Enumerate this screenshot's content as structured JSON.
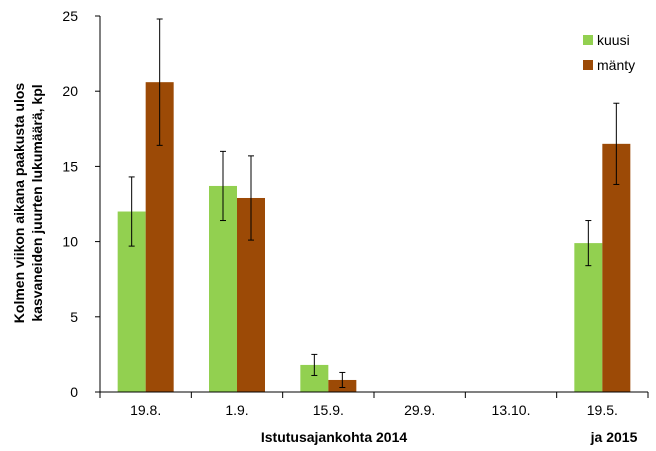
{
  "chart_data": {
    "type": "bar",
    "categories": [
      "19.8.",
      "1.9.",
      "15.9.",
      "29.9.",
      "13.10.",
      "19.5."
    ],
    "series": [
      {
        "name": "kuusi",
        "color": "#92d050",
        "values": [
          12.0,
          13.7,
          1.8,
          0,
          0,
          9.9
        ],
        "error": [
          2.3,
          2.3,
          0.7,
          0,
          0,
          1.5
        ]
      },
      {
        "name": "mänty",
        "color": "#9c4a06",
        "values": [
          20.6,
          12.9,
          0.8,
          0,
          0,
          16.5
        ],
        "error": [
          4.2,
          2.8,
          0.5,
          0,
          0,
          2.7
        ]
      }
    ],
    "ylabel_lines": [
      "Kolmen viikon aikana paakusta ulos",
      "kasvaneiden juurten lukumäärä, kpl"
    ],
    "xlabel": "Istutusajankohta 2014",
    "xlabel_extra": "ja 2015",
    "ylim": [
      0,
      25
    ],
    "yticks": [
      0,
      5,
      10,
      15,
      20,
      25
    ],
    "grid": false,
    "legend_position": "top-right"
  }
}
